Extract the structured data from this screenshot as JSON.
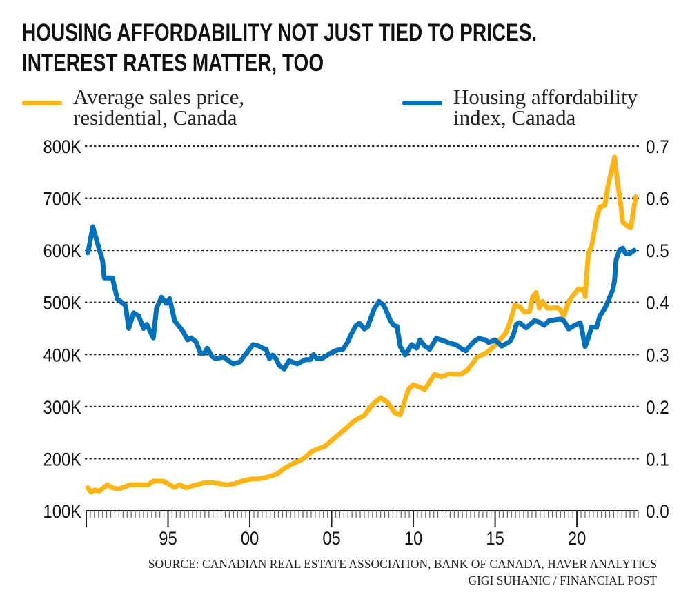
{
  "title": {
    "line1": "HOUSING AFFORDABILITY NOT JUST TIED TO PRICES.",
    "line2": "INTEREST RATES MATTER, TOO"
  },
  "colors": {
    "price": "#FDB515",
    "affordability": "#0070BA",
    "grid": "#222222"
  },
  "chart_data": {
    "type": "line",
    "title": "HOUSING AFFORDABILITY NOT JUST TIED TO PRICES. INTEREST RATES MATTER, TOO",
    "grid": "horizontal dotted",
    "legend_placement": "top",
    "x_range": [
      1990,
      2023.75
    ],
    "x_ticks": [
      {
        "year": 1995,
        "label": "95"
      },
      {
        "year": 2000,
        "label": "00"
      },
      {
        "year": 2005,
        "label": "05"
      },
      {
        "year": 2010,
        "label": "10"
      },
      {
        "year": 2015,
        "label": "15"
      },
      {
        "year": 2020,
        "label": "20"
      }
    ],
    "y_left": {
      "range": [
        100000,
        800000
      ],
      "ticks": [
        "100K",
        "200K",
        "300K",
        "400K",
        "500K",
        "600K",
        "700K",
        "800K"
      ],
      "tick_values": [
        100000,
        200000,
        300000,
        400000,
        500000,
        600000,
        700000,
        800000
      ]
    },
    "y_right": {
      "range": [
        0,
        0.7
      ],
      "ticks": [
        "0.0",
        "0.1",
        "0.2",
        "0.3",
        "0.4",
        "0.5",
        "0.6",
        "0.7"
      ],
      "tick_values": [
        0,
        0.1,
        0.2,
        0.3,
        0.4,
        0.5,
        0.6,
        0.7
      ]
    },
    "series": [
      {
        "name": "Average sales price, residential, Canada",
        "name_lines": [
          "Average sales price,",
          "residential, Canada"
        ],
        "axis": "left",
        "color": "#FDB515",
        "points": [
          [
            1990.1,
            144000
          ],
          [
            1990.3,
            136000
          ],
          [
            1990.5,
            140000
          ],
          [
            1990.8,
            138000
          ],
          [
            1991.3,
            150000
          ],
          [
            1991.6,
            144000
          ],
          [
            1992.0,
            142000
          ],
          [
            1992.7,
            150000
          ],
          [
            1993.2,
            150000
          ],
          [
            1993.8,
            150000
          ],
          [
            1994.1,
            157000
          ],
          [
            1994.7,
            157000
          ],
          [
            1995.4,
            145000
          ],
          [
            1995.7,
            150000
          ],
          [
            1996.1,
            144000
          ],
          [
            1996.6,
            149000
          ],
          [
            1997.3,
            154000
          ],
          [
            1997.7,
            154000
          ],
          [
            1998.6,
            150000
          ],
          [
            1999.1,
            152000
          ],
          [
            1999.6,
            158000
          ],
          [
            2000.1,
            161000
          ],
          [
            2000.5,
            161000
          ],
          [
            2001.1,
            165000
          ],
          [
            2001.7,
            171000
          ],
          [
            2002.1,
            181000
          ],
          [
            2002.6,
            190000
          ],
          [
            2003.3,
            200000
          ],
          [
            2003.8,
            214000
          ],
          [
            2004.6,
            224000
          ],
          [
            2005.3,
            243000
          ],
          [
            2005.8,
            256000
          ],
          [
            2006.4,
            273000
          ],
          [
            2007.0,
            283000
          ],
          [
            2007.5,
            304000
          ],
          [
            2008.0,
            317000
          ],
          [
            2008.4,
            309000
          ],
          [
            2008.9,
            287000
          ],
          [
            2009.2,
            284000
          ],
          [
            2009.7,
            333000
          ],
          [
            2010.0,
            342000
          ],
          [
            2010.7,
            333000
          ],
          [
            2011.3,
            362000
          ],
          [
            2011.7,
            357000
          ],
          [
            2012.2,
            363000
          ],
          [
            2012.6,
            362000
          ],
          [
            2012.9,
            362000
          ],
          [
            2013.3,
            370000
          ],
          [
            2013.6,
            382000
          ],
          [
            2013.9,
            395000
          ],
          [
            2014.4,
            402000
          ],
          [
            2014.8,
            412000
          ],
          [
            2015.2,
            425000
          ],
          [
            2015.6,
            439000
          ],
          [
            2015.8,
            452000
          ],
          [
            2016.0,
            472000
          ],
          [
            2016.2,
            494000
          ],
          [
            2016.5,
            492000
          ],
          [
            2016.8,
            481000
          ],
          [
            2017.1,
            482000
          ],
          [
            2017.3,
            511000
          ],
          [
            2017.5,
            519000
          ],
          [
            2017.7,
            489000
          ],
          [
            2017.9,
            502000
          ],
          [
            2018.2,
            489000
          ],
          [
            2018.5,
            489000
          ],
          [
            2018.8,
            490000
          ],
          [
            2019.0,
            485000
          ],
          [
            2019.2,
            474000
          ],
          [
            2019.5,
            502000
          ],
          [
            2019.8,
            515000
          ],
          [
            2020.1,
            526000
          ],
          [
            2020.4,
            525000
          ],
          [
            2020.5,
            511000
          ],
          [
            2020.7,
            595000
          ],
          [
            2020.9,
            608000
          ],
          [
            2021.2,
            661000
          ],
          [
            2021.4,
            683000
          ],
          [
            2021.7,
            686000
          ],
          [
            2021.9,
            723000
          ],
          [
            2022.3,
            779000
          ],
          [
            2022.5,
            727000
          ],
          [
            2022.7,
            683000
          ],
          [
            2022.8,
            654000
          ],
          [
            2023.1,
            646000
          ],
          [
            2023.3,
            644000
          ],
          [
            2023.6,
            703000
          ]
        ]
      },
      {
        "name": "Housing affordability index, Canada",
        "name_lines": [
          "Housing affordability",
          "index, Canada"
        ],
        "axis": "right",
        "color": "#0070BA",
        "points": [
          [
            1990.1,
            0.495
          ],
          [
            1990.4,
            0.545
          ],
          [
            1991.0,
            0.48
          ],
          [
            1991.1,
            0.447
          ],
          [
            1991.6,
            0.447
          ],
          [
            1991.9,
            0.407
          ],
          [
            1992.4,
            0.394
          ],
          [
            1992.6,
            0.35
          ],
          [
            1992.9,
            0.38
          ],
          [
            1993.2,
            0.374
          ],
          [
            1993.5,
            0.35
          ],
          [
            1993.7,
            0.358
          ],
          [
            1994.1,
            0.332
          ],
          [
            1994.3,
            0.389
          ],
          [
            1994.6,
            0.41
          ],
          [
            1994.9,
            0.398
          ],
          [
            1995.1,
            0.407
          ],
          [
            1995.4,
            0.365
          ],
          [
            1995.9,
            0.345
          ],
          [
            1996.2,
            0.328
          ],
          [
            1996.4,
            0.332
          ],
          [
            1996.7,
            0.325
          ],
          [
            1997.0,
            0.302
          ],
          [
            1997.2,
            0.302
          ],
          [
            1997.4,
            0.312
          ],
          [
            1997.7,
            0.296
          ],
          [
            1997.9,
            0.292
          ],
          [
            1998.4,
            0.295
          ],
          [
            1998.7,
            0.288
          ],
          [
            1999.0,
            0.282
          ],
          [
            1999.4,
            0.286
          ],
          [
            1999.8,
            0.303
          ],
          [
            2000.2,
            0.319
          ],
          [
            2000.5,
            0.317
          ],
          [
            2000.8,
            0.312
          ],
          [
            2001.0,
            0.31
          ],
          [
            2001.2,
            0.292
          ],
          [
            2001.4,
            0.299
          ],
          [
            2001.6,
            0.292
          ],
          [
            2001.8,
            0.279
          ],
          [
            2002.1,
            0.272
          ],
          [
            2002.4,
            0.288
          ],
          [
            2002.9,
            0.282
          ],
          [
            2003.4,
            0.29
          ],
          [
            2003.7,
            0.29
          ],
          [
            2003.9,
            0.3
          ],
          [
            2004.1,
            0.292
          ],
          [
            2004.4,
            0.292
          ],
          [
            2004.9,
            0.302
          ],
          [
            2005.3,
            0.308
          ],
          [
            2005.7,
            0.31
          ],
          [
            2006.0,
            0.325
          ],
          [
            2006.2,
            0.339
          ],
          [
            2006.5,
            0.356
          ],
          [
            2006.7,
            0.36
          ],
          [
            2007.0,
            0.349
          ],
          [
            2007.2,
            0.353
          ],
          [
            2007.6,
            0.387
          ],
          [
            2007.9,
            0.402
          ],
          [
            2008.2,
            0.394
          ],
          [
            2008.6,
            0.365
          ],
          [
            2008.8,
            0.356
          ],
          [
            2009.0,
            0.354
          ],
          [
            2009.2,
            0.315
          ],
          [
            2009.5,
            0.299
          ],
          [
            2009.9,
            0.319
          ],
          [
            2010.2,
            0.312
          ],
          [
            2010.4,
            0.328
          ],
          [
            2010.7,
            0.316
          ],
          [
            2011.0,
            0.31
          ],
          [
            2011.4,
            0.331
          ],
          [
            2011.7,
            0.328
          ],
          [
            2012.3,
            0.321
          ],
          [
            2012.6,
            0.319
          ],
          [
            2012.9,
            0.312
          ],
          [
            2013.2,
            0.307
          ],
          [
            2013.7,
            0.325
          ],
          [
            2014.0,
            0.331
          ],
          [
            2014.4,
            0.328
          ],
          [
            2014.6,
            0.323
          ],
          [
            2015.0,
            0.328
          ],
          [
            2015.4,
            0.316
          ],
          [
            2015.9,
            0.325
          ],
          [
            2016.1,
            0.336
          ],
          [
            2016.3,
            0.358
          ],
          [
            2016.5,
            0.361
          ],
          [
            2016.9,
            0.351
          ],
          [
            2017.4,
            0.365
          ],
          [
            2017.7,
            0.362
          ],
          [
            2018.0,
            0.356
          ],
          [
            2018.3,
            0.365
          ],
          [
            2019.0,
            0.368
          ],
          [
            2019.2,
            0.365
          ],
          [
            2019.5,
            0.349
          ],
          [
            2019.8,
            0.355
          ],
          [
            2020.2,
            0.361
          ],
          [
            2020.3,
            0.349
          ],
          [
            2020.5,
            0.315
          ],
          [
            2020.7,
            0.332
          ],
          [
            2020.9,
            0.353
          ],
          [
            2021.2,
            0.352
          ],
          [
            2021.4,
            0.374
          ],
          [
            2021.7,
            0.388
          ],
          [
            2021.9,
            0.402
          ],
          [
            2022.2,
            0.425
          ],
          [
            2022.3,
            0.442
          ],
          [
            2022.4,
            0.482
          ],
          [
            2022.6,
            0.5
          ],
          [
            2022.8,
            0.504
          ],
          [
            2023.0,
            0.493
          ],
          [
            2023.2,
            0.493
          ],
          [
            2023.5,
            0.5
          ]
        ]
      }
    ]
  },
  "source": {
    "line1": "SOURCE: CANADIAN REAL ESTATE ASSOCIATION, BANK OF CANADA, HAVER ANALYTICS",
    "line2": "GIGI SUHANIC / FINANCIAL POST"
  }
}
